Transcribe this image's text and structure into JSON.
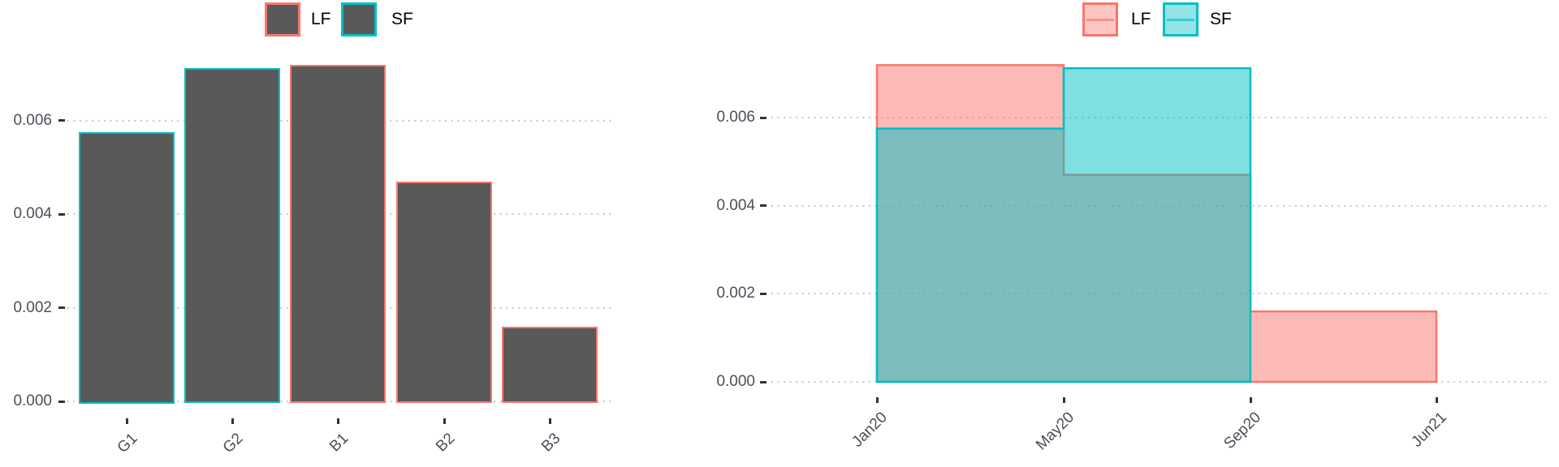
{
  "figure_background": "#ffffff",
  "colors": {
    "lf": "#F8766D",
    "sf": "#00BFC4",
    "bar_fill": "#595959",
    "axis_text": "#4a5058",
    "tick_mark": "#333333",
    "grid_dot": "#c9c9c9",
    "legend_text": "#000000"
  },
  "chart_data": [
    {
      "type": "bar",
      "title": "",
      "xlabel": "",
      "ylabel": "",
      "categories": [
        "G1",
        "G2",
        "B1",
        "B2",
        "B3"
      ],
      "values": [
        0.00575,
        0.00712,
        0.00719,
        0.0047,
        0.0016
      ],
      "bar_outline_group": [
        "SF",
        "SF",
        "LF",
        "LF",
        "LF"
      ],
      "bar_fill": "#595959",
      "ylim": [
        0,
        0.00756
      ],
      "yticks": [
        0,
        0.002,
        0.004,
        0.006
      ],
      "ytick_labels": [
        "0.000",
        "0.002",
        "0.004",
        "0.006"
      ],
      "grid": "horizontal-dotted",
      "legend": {
        "position": "top-center",
        "entries": [
          {
            "label": "LF",
            "stroke": "#F8766D",
            "fill": "#595959",
            "style": "filled-box"
          },
          {
            "label": "SF",
            "stroke": "#00BFC4",
            "fill": "#595959",
            "style": "filled-box"
          }
        ]
      }
    },
    {
      "type": "area",
      "title": "",
      "xlabel": "",
      "ylabel": "",
      "x_breaks": [
        "Jan20",
        "May20",
        "Sep20",
        "Jun21"
      ],
      "series": [
        {
          "name": "LF",
          "color": "#F8766D",
          "step_values": [
            0.00719,
            0.0047,
            0.0016
          ],
          "step_spans": [
            [
              "Jan20",
              "May20"
            ],
            [
              "May20",
              "Sep20"
            ],
            [
              "Sep20",
              "Jun21"
            ]
          ]
        },
        {
          "name": "SF",
          "color": "#00BFC4",
          "step_values": [
            0.00575,
            0.00712
          ],
          "step_spans": [
            [
              "Jan20",
              "May20"
            ],
            [
              "May20",
              "Sep20"
            ]
          ]
        }
      ],
      "fill_opacity": 0.5,
      "draw_order": [
        "LF",
        "SF"
      ],
      "ylim": [
        0,
        0.00756
      ],
      "yticks": [
        0,
        0.002,
        0.004,
        0.006
      ],
      "ytick_labels": [
        "0.000",
        "0.002",
        "0.004",
        "0.006"
      ],
      "grid": "horizontal-dotted",
      "legend": {
        "position": "top-center",
        "entries": [
          {
            "label": "LF",
            "stroke": "#F8766D",
            "fill_alpha": 0.5,
            "style": "area-box-with-line"
          },
          {
            "label": "SF",
            "stroke": "#00BFC4",
            "fill_alpha": 0.5,
            "style": "area-box-with-line"
          }
        ]
      }
    }
  ]
}
